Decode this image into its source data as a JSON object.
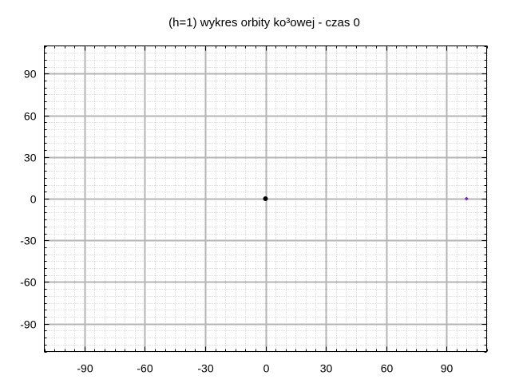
{
  "chart_data": {
    "type": "scatter",
    "title": "(h=1) wykres orbity ko³owej - czas 0",
    "xlabel": "",
    "ylabel": "",
    "xlim": [
      -110,
      110
    ],
    "ylim": [
      -110,
      110
    ],
    "x_major_ticks": [
      -90,
      -60,
      -30,
      0,
      30,
      60,
      90
    ],
    "y_major_ticks": [
      -90,
      -60,
      -30,
      0,
      30,
      60,
      90
    ],
    "x_tick_labels": [
      "-90",
      "-60",
      "-30",
      "0",
      "30",
      "60",
      "90"
    ],
    "y_tick_labels": [
      "-90",
      "-60",
      "-30",
      "0",
      "30",
      "60",
      "90"
    ],
    "minor_tick_step": 5,
    "grid": true,
    "minor_grid": true,
    "series": [
      {
        "values": [
          {
            "x": 0,
            "y": 0
          }
        ],
        "color": "#000000",
        "marker": "filled-circle"
      },
      {
        "values": [
          {
            "x": 100,
            "y": 0
          }
        ],
        "color": "#7b2ba8",
        "marker": "diamond"
      }
    ]
  }
}
